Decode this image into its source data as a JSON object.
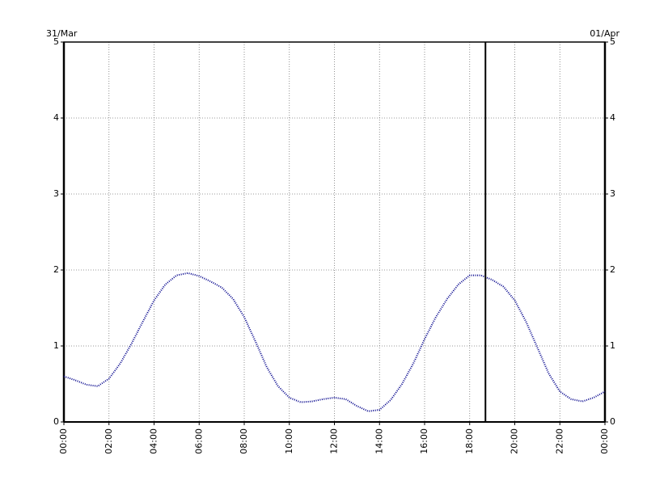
{
  "chart_data": {
    "type": "line",
    "start_label": "31/Mar",
    "end_label": "01/Apr",
    "x": [
      0,
      0.5,
      1,
      1.5,
      2,
      2.5,
      3,
      3.5,
      4,
      4.5,
      5,
      5.5,
      6,
      6.5,
      7,
      7.5,
      8,
      8.5,
      9,
      9.5,
      10,
      10.5,
      11,
      11.5,
      12,
      12.5,
      13,
      13.5,
      14,
      14.5,
      15,
      15.5,
      16,
      16.5,
      17,
      17.5,
      18,
      18.5,
      19,
      19.5,
      20,
      20.5,
      21,
      21.5,
      22,
      22.5,
      23,
      23.5,
      24
    ],
    "series": [
      {
        "color": "#00008b",
        "values": [
          0.6,
          0.55,
          0.49,
          0.47,
          0.57,
          0.77,
          1.03,
          1.32,
          1.6,
          1.81,
          1.93,
          1.96,
          1.92,
          1.85,
          1.77,
          1.62,
          1.38,
          1.06,
          0.72,
          0.47,
          0.32,
          0.26,
          0.27,
          0.3,
          0.32,
          0.3,
          0.21,
          0.14,
          0.16,
          0.29,
          0.5,
          0.77,
          1.09,
          1.38,
          1.62,
          1.81,
          1.93,
          1.93,
          1.87,
          1.78,
          1.6,
          1.32,
          0.98,
          0.64,
          0.4,
          0.3,
          0.27,
          0.32,
          0.4
        ]
      }
    ],
    "marker_x": 18.7,
    "xlim": [
      0,
      24
    ],
    "xticks": [
      {
        "value": 0,
        "label": "00:00"
      },
      {
        "value": 2,
        "label": "02:00"
      },
      {
        "value": 4,
        "label": "04:00"
      },
      {
        "value": 6,
        "label": "06:00"
      },
      {
        "value": 8,
        "label": "08:00"
      },
      {
        "value": 10,
        "label": "10:00"
      },
      {
        "value": 12,
        "label": "12:00"
      },
      {
        "value": 14,
        "label": "14:00"
      },
      {
        "value": 16,
        "label": "16:00"
      },
      {
        "value": 18,
        "label": "18:00"
      },
      {
        "value": 20,
        "label": "20:00"
      },
      {
        "value": 22,
        "label": "22:00"
      },
      {
        "value": 24,
        "label": "00:00"
      }
    ],
    "ylim": [
      0,
      5
    ],
    "yticks": [
      0,
      1,
      2,
      3,
      4,
      5
    ],
    "y2lim": [
      0,
      5
    ],
    "y2ticks": [
      0,
      1,
      2,
      3,
      4,
      5
    ],
    "grid": true
  }
}
